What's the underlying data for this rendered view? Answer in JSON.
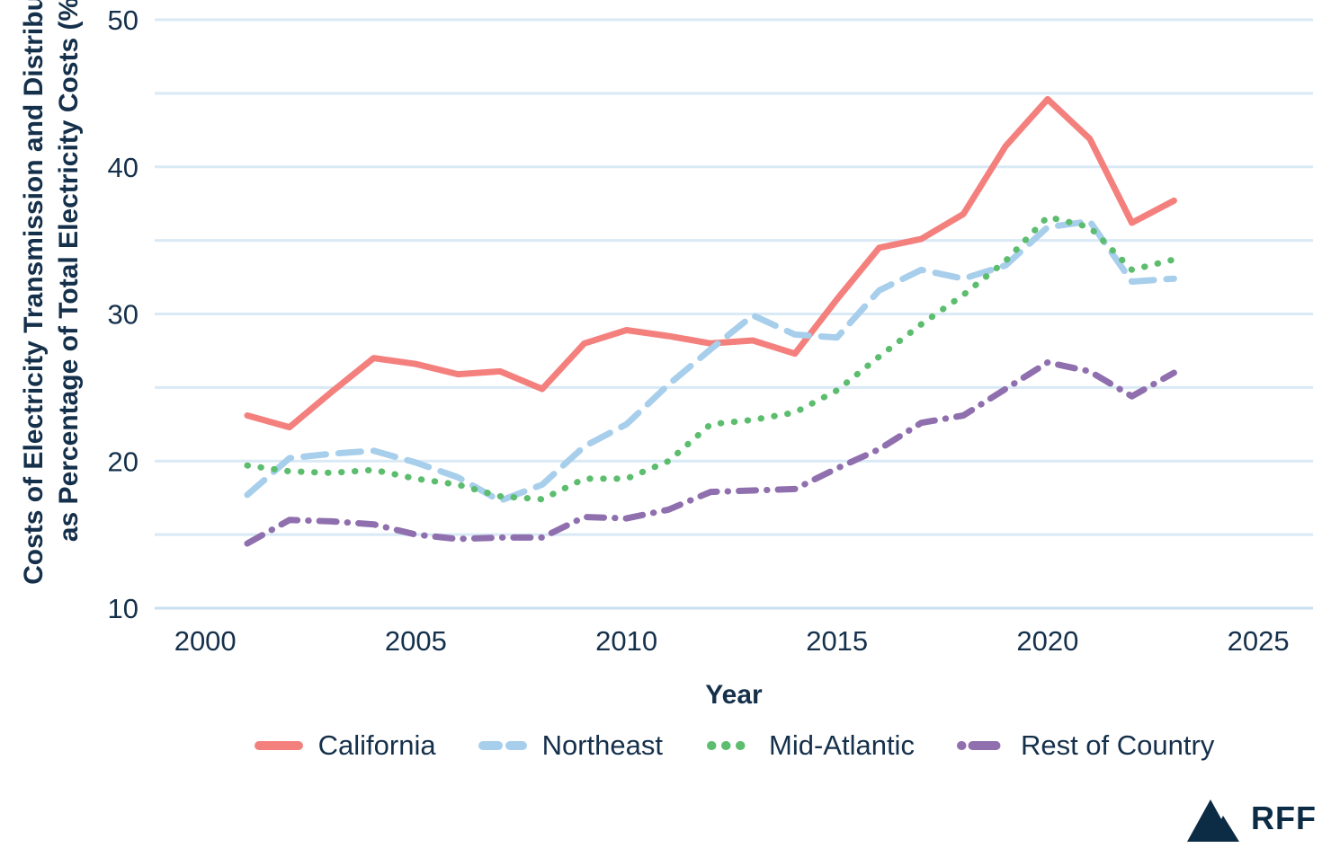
{
  "chart_data": {
    "type": "line",
    "xlabel": "Year",
    "ylabel_line1": "Costs of Electricity Transmission and Distribution",
    "ylabel_line2": "as Percentage of Total Electricity Costs (%)",
    "x": [
      2001,
      2002,
      2003,
      2004,
      2005,
      2006,
      2007,
      2008,
      2009,
      2010,
      2011,
      2012,
      2013,
      2014,
      2015,
      2016,
      2017,
      2018,
      2019,
      2020,
      2021,
      2022,
      2023
    ],
    "series": [
      {
        "name": "California",
        "color": "#F4807E",
        "dash": "solid",
        "values": [
          23.1,
          22.3,
          24.7,
          27.0,
          26.6,
          25.9,
          26.1,
          24.9,
          28.0,
          28.9,
          28.5,
          28.0,
          28.2,
          27.3,
          31.0,
          34.5,
          35.1,
          36.8,
          41.4,
          44.6,
          41.9,
          36.2,
          37.7
        ]
      },
      {
        "name": "Northeast",
        "color": "#A7CEEB",
        "dash": "dashed",
        "values": [
          17.7,
          20.2,
          20.5,
          20.7,
          19.9,
          18.9,
          17.3,
          18.4,
          21.0,
          22.5,
          25.2,
          27.6,
          29.9,
          28.6,
          28.4,
          31.6,
          33.0,
          32.4,
          33.3,
          35.9,
          36.3,
          32.2,
          32.4
        ]
      },
      {
        "name": "Mid-Atlantic",
        "color": "#5CBD6E",
        "dash": "dotted",
        "values": [
          19.7,
          19.3,
          19.2,
          19.4,
          18.8,
          18.4,
          17.6,
          17.4,
          18.8,
          18.8,
          20.0,
          22.5,
          22.8,
          23.3,
          24.8,
          27.1,
          29.3,
          31.3,
          33.6,
          36.6,
          35.9,
          33.0,
          33.7
        ]
      },
      {
        "name": "Rest of Country",
        "color": "#8F6FAE",
        "dash": "dashdot",
        "values": [
          14.4,
          16.0,
          15.9,
          15.7,
          15.0,
          14.7,
          14.8,
          14.8,
          16.2,
          16.1,
          16.7,
          17.9,
          18.0,
          18.1,
          19.5,
          20.8,
          22.6,
          23.1,
          24.9,
          26.7,
          26.1,
          24.4,
          26.0
        ]
      }
    ],
    "x_ticks": [
      2000,
      2005,
      2010,
      2015,
      2020,
      2025
    ],
    "y_ticks": [
      10,
      20,
      30,
      40,
      50
    ],
    "grid_step": 5,
    "xlim": [
      1998.8,
      2026.3
    ],
    "ylim": [
      10,
      50
    ],
    "grid": true,
    "legend_position": "bottom"
  },
  "colors": {
    "text": "#15304B",
    "gridline": "#D9E9F5",
    "axis_line": "#C9E0F1",
    "background": "#FFFFFF",
    "logo": "#0C2B45"
  },
  "branding": {
    "logo_text": "RFF",
    "logo_icon": "mountain-icon"
  }
}
